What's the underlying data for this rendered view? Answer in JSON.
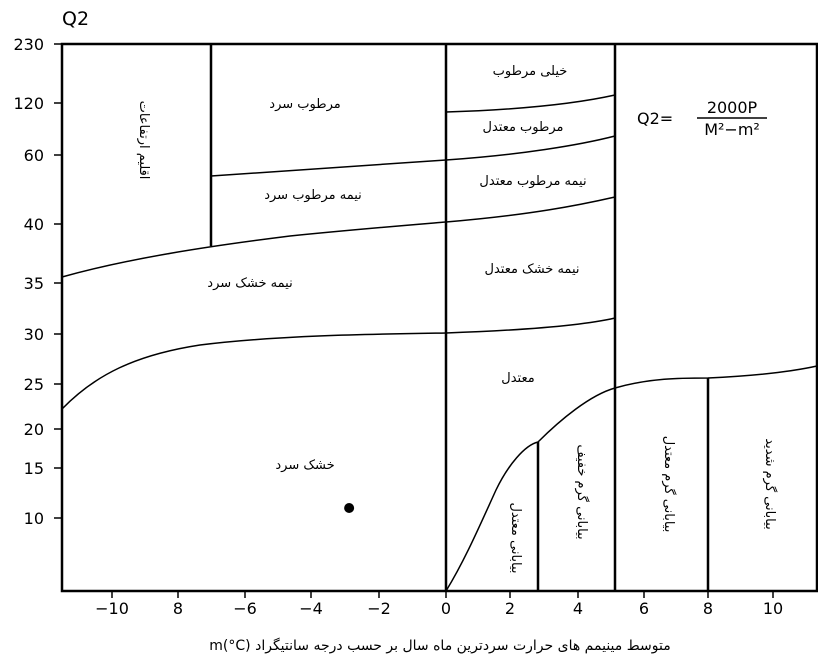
{
  "chart": {
    "y_title": "Q2",
    "x_title": "متوسط مینیمم های حرارت سردترین ماه سال بر حسب درجه سانتیگراد m(°C)",
    "y_ticks": [
      "230",
      "120",
      "60",
      "40",
      "35",
      "30",
      "25",
      "20",
      "15",
      "10"
    ],
    "x_ticks": [
      "−10",
      "8",
      "−6",
      "−4",
      "−2",
      "0",
      "2",
      "4",
      "6",
      "8",
      "10"
    ],
    "formula": {
      "lhs": "Q2=",
      "numerator": "2000P",
      "denominator": "M²−m²"
    }
  },
  "zones": {
    "highland": "اقلیم ارتفاعات",
    "humid_cold": "مرطوب سرد",
    "very_humid": "خیلی مرطوب",
    "humid_temperate": "مرطوب معتدل",
    "semi_humid_cold": "نیمه مرطوب سرد",
    "semi_humid_temperate": "نیمه مرطوب معتدل",
    "semi_arid_cold": "نیمه خشک سرد",
    "semi_arid_temperate": "نیمه خشک معتدل",
    "temperate": "معتدل",
    "arid_cold": "خشک سرد",
    "desert_temperate": "بیابانی معتدل",
    "desert_hot_mild": "بیابانی گرم خفیف",
    "desert_hot_moderate": "بیابانی گرم معتدل",
    "desert_hot_severe": "بیابانی گرم شدید"
  },
  "chart_data": {
    "type": "scatter",
    "title": "",
    "xlabel": "متوسط مینیمم های حرارت سردترین ماه سال بر حسب درجه سانتیگراد m(°C)",
    "ylabel": "Q2",
    "xlim": [
      -11.5,
      11.5
    ],
    "y_scale": "non-linear (ticks 10, 15, 20, 25, 30, 35, 40, 60, 120, 230)",
    "grid": false,
    "points": [
      {
        "x": -2.9,
        "y": 11
      }
    ]
  }
}
